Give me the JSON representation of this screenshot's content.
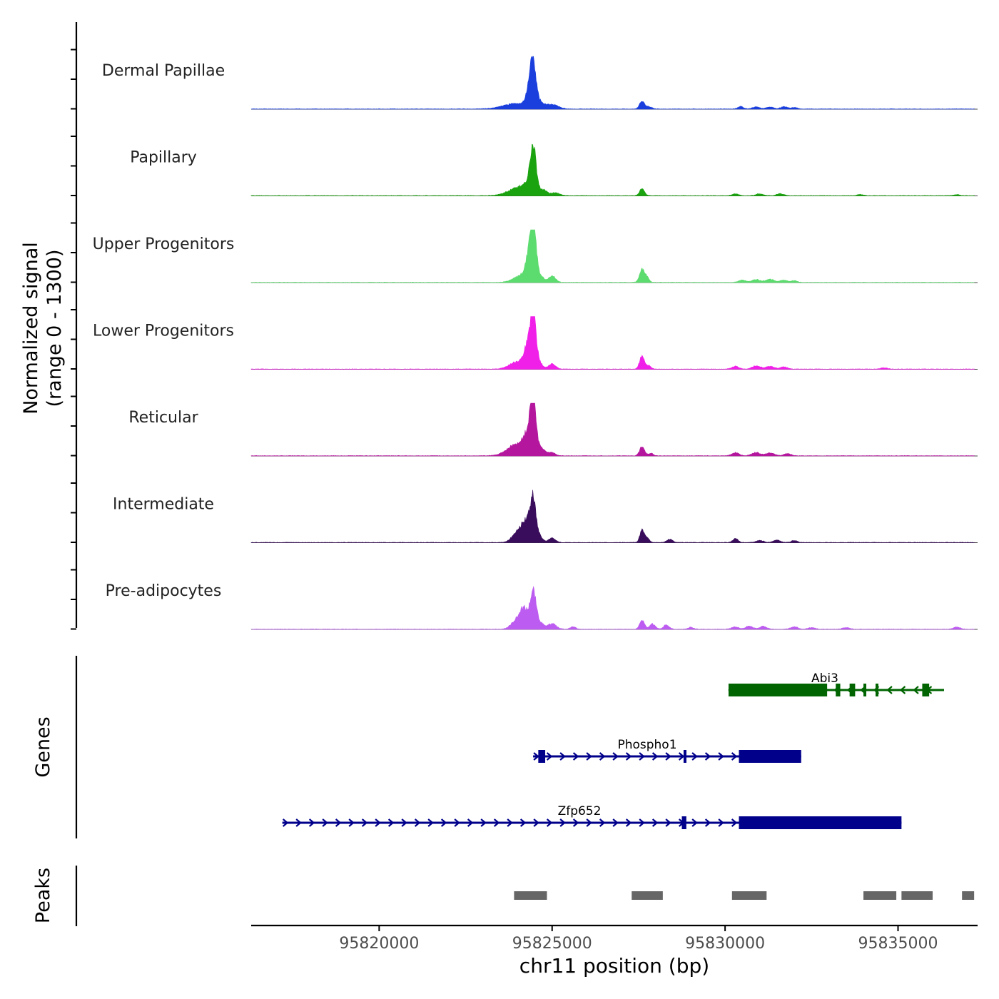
{
  "chart_data": {
    "type": "area",
    "title": "",
    "chromosome": "chr11",
    "xlabel": "chr11 position (bp)",
    "ylabel_line1": "Normalized signal",
    "ylabel_line2": "(range 0 - 1300)",
    "y_range": [
      0,
      1300
    ],
    "xlim": [
      95816300,
      95837300
    ],
    "x_ticks": [
      95820000,
      95825000,
      95830000,
      95835000
    ],
    "x_tick_labels": [
      "95820000",
      "95825000",
      "95830000",
      "95835000"
    ],
    "tracks": [
      {
        "name": "Dermal Papillae",
        "color": "#1a3fdd",
        "max": 950,
        "peaks": [
          [
            95824000,
            140,
            400
          ],
          [
            95824360,
            380,
            110
          ],
          [
            95824450,
            920,
            80
          ],
          [
            95824620,
            130,
            120
          ],
          [
            95824900,
            70,
            150
          ],
          [
            95825100,
            60,
            150
          ],
          [
            95827600,
            200,
            70
          ],
          [
            95827800,
            60,
            80
          ],
          [
            95830450,
            60,
            80
          ],
          [
            95830900,
            55,
            100
          ],
          [
            95831300,
            50,
            100
          ],
          [
            95831700,
            55,
            100
          ],
          [
            95832000,
            40,
            80
          ]
        ]
      },
      {
        "name": "Papillary",
        "color": "#1ba30f",
        "max": 1000,
        "peaks": [
          [
            95824100,
            230,
            320
          ],
          [
            95824400,
            200,
            140
          ],
          [
            95824450,
            1000,
            80
          ],
          [
            95824750,
            110,
            110
          ],
          [
            95825100,
            70,
            120
          ],
          [
            95827600,
            180,
            70
          ],
          [
            95830300,
            45,
            90
          ],
          [
            95831000,
            45,
            100
          ],
          [
            95831600,
            50,
            100
          ],
          [
            95833900,
            30,
            80
          ],
          [
            95836700,
            25,
            80
          ]
        ]
      },
      {
        "name": "Upper Progenitors",
        "color": "#5cdb6e",
        "max": 1300,
        "peaks": [
          [
            95824150,
            180,
            240
          ],
          [
            95824360,
            520,
            110
          ],
          [
            95824450,
            1300,
            85
          ],
          [
            95824680,
            130,
            90
          ],
          [
            95825000,
            160,
            100
          ],
          [
            95827600,
            350,
            70
          ],
          [
            95827750,
            120,
            60
          ],
          [
            95830500,
            60,
            100
          ],
          [
            95830900,
            70,
            120
          ],
          [
            95831300,
            75,
            120
          ],
          [
            95831700,
            60,
            100
          ],
          [
            95832000,
            45,
            80
          ]
        ]
      },
      {
        "name": "Lower Progenitors",
        "color": "#f020e8",
        "max": 1300,
        "peaks": [
          [
            95824000,
            180,
            230
          ],
          [
            95824300,
            480,
            120
          ],
          [
            95824450,
            1300,
            85
          ],
          [
            95824650,
            120,
            90
          ],
          [
            95825000,
            130,
            100
          ],
          [
            95827600,
            320,
            70
          ],
          [
            95827800,
            90,
            60
          ],
          [
            95830300,
            70,
            100
          ],
          [
            95830900,
            80,
            120
          ],
          [
            95831300,
            70,
            120
          ],
          [
            95831700,
            55,
            100
          ],
          [
            95834600,
            30,
            100
          ]
        ]
      },
      {
        "name": "Reticular",
        "color": "#b4179e",
        "max": 1050,
        "peaks": [
          [
            95824000,
            300,
            280
          ],
          [
            95824350,
            520,
            140
          ],
          [
            95824450,
            1050,
            80
          ],
          [
            95824700,
            170,
            110
          ],
          [
            95825000,
            80,
            100
          ],
          [
            95827600,
            230,
            70
          ],
          [
            95827850,
            60,
            70
          ],
          [
            95830300,
            80,
            100
          ],
          [
            95830900,
            80,
            120
          ],
          [
            95831300,
            70,
            120
          ],
          [
            95831800,
            55,
            100
          ]
        ]
      },
      {
        "name": "Intermediate",
        "color": "#3a0d5c",
        "max": 950,
        "peaks": [
          [
            95823950,
            180,
            140
          ],
          [
            95824250,
            520,
            160
          ],
          [
            95824450,
            920,
            85
          ],
          [
            95824650,
            120,
            90
          ],
          [
            95825000,
            110,
            100
          ],
          [
            95827600,
            330,
            60
          ],
          [
            95827750,
            120,
            60
          ],
          [
            95828400,
            80,
            80
          ],
          [
            95830300,
            110,
            70
          ],
          [
            95831000,
            55,
            100
          ],
          [
            95831500,
            60,
            100
          ],
          [
            95832000,
            55,
            80
          ]
        ]
      },
      {
        "name": "Pre-adipocytes",
        "color": "#bd5cf0",
        "max": 950,
        "peaks": [
          [
            95824000,
            250,
            160
          ],
          [
            95824200,
            420,
            110
          ],
          [
            95824450,
            940,
            85
          ],
          [
            95824650,
            160,
            100
          ],
          [
            95825000,
            140,
            120
          ],
          [
            95825600,
            60,
            80
          ],
          [
            95827600,
            220,
            70
          ],
          [
            95827900,
            130,
            80
          ],
          [
            95828300,
            110,
            80
          ],
          [
            95829000,
            45,
            80
          ],
          [
            95830300,
            60,
            100
          ],
          [
            95830700,
            80,
            100
          ],
          [
            95831100,
            75,
            100
          ],
          [
            95832000,
            60,
            100
          ],
          [
            95832500,
            40,
            100
          ],
          [
            95833500,
            40,
            100
          ],
          [
            95836700,
            50,
            100
          ]
        ]
      }
    ],
    "genes_label": "Genes",
    "genes": [
      {
        "name": "Abi3",
        "strand": "-",
        "color": "#006400",
        "start": 95830100,
        "end": 95837300,
        "exons": [
          [
            95830100,
            95832950
          ],
          [
            95833200,
            95833330
          ],
          [
            95833600,
            95833760
          ],
          [
            95834000,
            95834080
          ],
          [
            95834350,
            95834420
          ],
          [
            95835700,
            95835900
          ]
        ]
      },
      {
        "name": "Phospho1",
        "strand": "+",
        "color": "#00008b",
        "start": 95824450,
        "end": 95832200,
        "exons": [
          [
            95824600,
            95824800
          ],
          [
            95828800,
            95828880
          ],
          [
            95830400,
            95832200
          ]
        ]
      },
      {
        "name": "Zfp652",
        "strand": "+",
        "color": "#00008b",
        "start": 95817200,
        "end": 95835100,
        "exons": [
          [
            95828750,
            95828880
          ],
          [
            95830400,
            95835100
          ]
        ]
      }
    ],
    "peaks_label": "Peaks",
    "peaks_color": "#666666",
    "peak_regions": [
      [
        95823900,
        95824850
      ],
      [
        95827300,
        95828200
      ],
      [
        95830200,
        95831200
      ],
      [
        95834000,
        95834950
      ],
      [
        95835100,
        95836000
      ],
      [
        95836850,
        95837200
      ]
    ]
  }
}
